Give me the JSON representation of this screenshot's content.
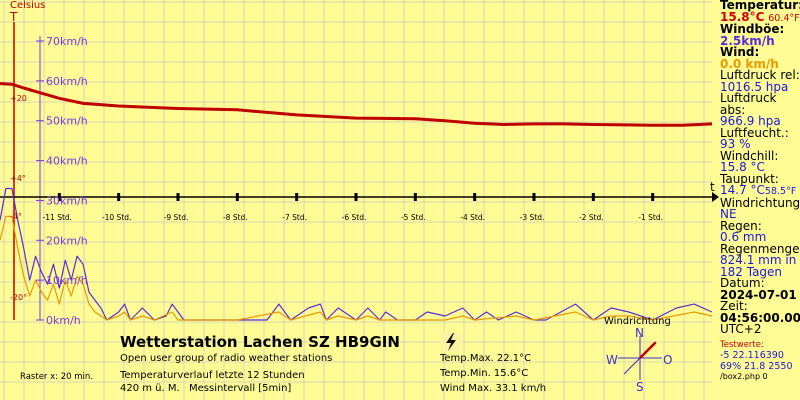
{
  "header": {
    "unit_label": "Celsius",
    "unit_symbol": "T"
  },
  "station": {
    "title": "Wetterstation Lachen SZ HB9GIN",
    "subtitle": "Open user group of radio weather stations",
    "period": "Temperaturverlauf letzte 12 Stunden",
    "altitude": "420 m ü. M.",
    "interval": "Messintervall [5min]",
    "raster": "Raster x: 20 min."
  },
  "summary": {
    "temp_max": "Temp.Max. 22.1°C",
    "temp_min": "Temp.Min. 15.6°C",
    "wind_max": "Wind Max. 33.1 km/h"
  },
  "compass": {
    "title": "Windrichtung",
    "n": "N",
    "s": "S",
    "o": "O",
    "w": "W",
    "needle_deg": 45
  },
  "panel": {
    "temp_label": "Temperatur:",
    "temp_c": "15.8°C",
    "temp_f": "60.4°F",
    "gust_label": "Windböe:",
    "gust_val": "2.5km/h",
    "wind_label": "Wind:",
    "wind_val": "0.0 km/h",
    "press_rel_label": "Luftdruck rel:",
    "press_rel_val": "1016.5 hpa",
    "press_abs_label": "Luftdruck abs:",
    "press_abs_val": "966.9 hpa",
    "hum_label": "Luftfeucht.:",
    "hum_val": "93 %",
    "chill_label": "Windchill:",
    "chill_val": "15.8 °C",
    "dew_label": "Taupunkt:",
    "dew_c": "14.7 °C",
    "dew_f": "58.5°F",
    "dir_label": "Windrichtung:",
    "dir_val": "NE",
    "rain_label": "Regen:",
    "rain_val": "0.6 mm",
    "rainsum_label": "Regenmenge:",
    "rainsum_val": "824.1 mm in",
    "rainsum_days": "182 Tagen",
    "date_label": "Datum:",
    "date_val": "2024-07-01",
    "time_label": "Zeit:",
    "time_val": "04:56:00.000",
    "tz": "UTC+2",
    "test_label": "Testwerte:",
    "test_line1": "-5   22.116390",
    "test_line2": "69% 21.8   2550",
    "footer": "/box2.php 0"
  },
  "chart_data": {
    "type": "line",
    "x_axis": {
      "label": "t",
      "ticks": [
        "-11 Std.",
        "-10 Std.",
        "-9 Std.",
        "-8 Std.",
        "-7 Std.",
        "-6 Std.",
        "-5 Std.",
        "-4 Std.",
        "-3 Std.",
        "-2 Std.",
        "-1 Std."
      ],
      "tick_hours": [
        -11,
        -10,
        -9,
        -8,
        -7,
        -6,
        -5,
        -4,
        -3,
        -2,
        -1
      ],
      "range_hours": [
        -12,
        0
      ]
    },
    "wind_axis": {
      "ticks": [
        "70km/h",
        "60km/h",
        "50km/h",
        "40km/h",
        "30km/h",
        "20km/h",
        "10km/h",
        "0km/h"
      ],
      "tick_values": [
        70,
        60,
        50,
        40,
        30,
        20,
        10,
        0
      ],
      "range": [
        0,
        70
      ]
    },
    "temp_axis": {
      "ticks": [
        "+20",
        "+4°",
        "-4°",
        "-20°"
      ]
    },
    "grid": true,
    "series": [
      {
        "name": "Temperatur",
        "axis": "temp",
        "color": "#c00000",
        "points": [
          [
            -12,
            22.1
          ],
          [
            -11.8,
            22.0
          ],
          [
            -11.6,
            21.4
          ],
          [
            -11.3,
            20.6
          ],
          [
            -11.0,
            19.8
          ],
          [
            -10.6,
            19.0
          ],
          [
            -10.0,
            18.6
          ],
          [
            -9.0,
            18.2
          ],
          [
            -8.0,
            18.0
          ],
          [
            -7.5,
            17.6
          ],
          [
            -7.0,
            17.2
          ],
          [
            -6.0,
            16.7
          ],
          [
            -5.0,
            16.6
          ],
          [
            -4.5,
            16.3
          ],
          [
            -4.0,
            15.9
          ],
          [
            -3.5,
            15.7
          ],
          [
            -3.0,
            15.8
          ],
          [
            -2.5,
            15.8
          ],
          [
            -2.0,
            15.7
          ],
          [
            -1.0,
            15.6
          ],
          [
            -0.5,
            15.6
          ],
          [
            0,
            15.8
          ]
        ]
      },
      {
        "name": "Windböe",
        "axis": "wind",
        "color": "#5b2dd6",
        "points": [
          [
            -12,
            25
          ],
          [
            -11.9,
            33
          ],
          [
            -11.8,
            33
          ],
          [
            -11.7,
            25
          ],
          [
            -11.6,
            18
          ],
          [
            -11.5,
            10
          ],
          [
            -11.4,
            16
          ],
          [
            -11.3,
            12
          ],
          [
            -11.2,
            9
          ],
          [
            -11.1,
            14
          ],
          [
            -11.0,
            8
          ],
          [
            -10.9,
            15
          ],
          [
            -10.8,
            10
          ],
          [
            -10.7,
            16
          ],
          [
            -10.6,
            14
          ],
          [
            -10.5,
            7
          ],
          [
            -10.4,
            5
          ],
          [
            -10.3,
            3
          ],
          [
            -10.2,
            0
          ],
          [
            -10.0,
            2
          ],
          [
            -9.9,
            4
          ],
          [
            -9.8,
            0
          ],
          [
            -9.6,
            3
          ],
          [
            -9.4,
            0
          ],
          [
            -9.2,
            1
          ],
          [
            -9.1,
            4
          ],
          [
            -9.0,
            2
          ],
          [
            -8.9,
            0
          ],
          [
            -8.6,
            0
          ],
          [
            -8.0,
            0
          ],
          [
            -7.5,
            0
          ],
          [
            -7.3,
            4
          ],
          [
            -7.1,
            0
          ],
          [
            -6.8,
            3
          ],
          [
            -6.6,
            4
          ],
          [
            -6.5,
            0
          ],
          [
            -6.3,
            3
          ],
          [
            -6.0,
            0
          ],
          [
            -5.8,
            3
          ],
          [
            -5.6,
            0
          ],
          [
            -5.5,
            2
          ],
          [
            -5.3,
            0
          ],
          [
            -5.0,
            0
          ],
          [
            -4.8,
            2
          ],
          [
            -4.5,
            1
          ],
          [
            -4.2,
            3
          ],
          [
            -4.0,
            0
          ],
          [
            -3.8,
            2
          ],
          [
            -3.6,
            0
          ],
          [
            -3.3,
            2
          ],
          [
            -3.0,
            0
          ],
          [
            -2.8,
            0
          ],
          [
            -2.3,
            4
          ],
          [
            -2.0,
            0
          ],
          [
            -1.7,
            3
          ],
          [
            -1.4,
            2
          ],
          [
            -1.0,
            0
          ],
          [
            -0.6,
            3
          ],
          [
            -0.3,
            4
          ],
          [
            0,
            2
          ]
        ]
      },
      {
        "name": "Wind",
        "axis": "wind",
        "color": "#e89a00",
        "points": [
          [
            -12,
            20
          ],
          [
            -11.9,
            26
          ],
          [
            -11.8,
            26
          ],
          [
            -11.7,
            18
          ],
          [
            -11.6,
            11
          ],
          [
            -11.5,
            6
          ],
          [
            -11.4,
            10
          ],
          [
            -11.3,
            7
          ],
          [
            -11.2,
            5
          ],
          [
            -11.1,
            9
          ],
          [
            -11.0,
            4
          ],
          [
            -10.9,
            10
          ],
          [
            -10.8,
            6
          ],
          [
            -10.7,
            11
          ],
          [
            -10.6,
            9
          ],
          [
            -10.5,
            4
          ],
          [
            -10.4,
            2
          ],
          [
            -10.3,
            1
          ],
          [
            -10.2,
            0
          ],
          [
            -10.0,
            1
          ],
          [
            -9.9,
            2
          ],
          [
            -9.8,
            0
          ],
          [
            -9.6,
            1
          ],
          [
            -9.4,
            0
          ],
          [
            -9.1,
            2
          ],
          [
            -9.0,
            0
          ],
          [
            -8.0,
            0
          ],
          [
            -7.3,
            2
          ],
          [
            -7.1,
            0
          ],
          [
            -6.6,
            2
          ],
          [
            -6.5,
            0
          ],
          [
            -6.3,
            1
          ],
          [
            -6.0,
            0
          ],
          [
            -5.8,
            1
          ],
          [
            -5.6,
            0
          ],
          [
            -4.5,
            0
          ],
          [
            -4.2,
            1
          ],
          [
            -4.0,
            0
          ],
          [
            -3.3,
            1
          ],
          [
            -3.0,
            0
          ],
          [
            -2.3,
            2
          ],
          [
            -2.0,
            0
          ],
          [
            -1.7,
            1
          ],
          [
            -1.4,
            1
          ],
          [
            -1.0,
            0
          ],
          [
            -0.3,
            2
          ],
          [
            0,
            1
          ]
        ]
      }
    ]
  }
}
